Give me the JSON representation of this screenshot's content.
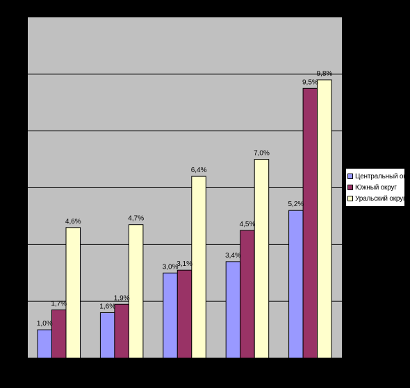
{
  "chart_data": {
    "type": "bar",
    "title": "",
    "xlabel": "",
    "ylabel": "",
    "categories": [
      "",
      "",
      "",
      "",
      ""
    ],
    "ylim": [
      0,
      12
    ],
    "grid": true,
    "legend_position": "right",
    "series": [
      {
        "name": "Центральный округ",
        "color": "#9999ff",
        "values": [
          1.0,
          1.6,
          3.0,
          3.4,
          5.2
        ],
        "labels": [
          "1,0%",
          "1,6%",
          "3,0%",
          "3,4%",
          "5,2%"
        ]
      },
      {
        "name": "Южный округ",
        "color": "#993366",
        "values": [
          1.7,
          1.9,
          3.1,
          4.5,
          9.5
        ],
        "labels": [
          "1,7%",
          "1,9%",
          "3,1%",
          "4,5%",
          "9,5%"
        ]
      },
      {
        "name": "Уральский округ",
        "color": "#ffffcc",
        "values": [
          4.6,
          4.7,
          6.4,
          7.0,
          9.8
        ],
        "labels": [
          "4,6%",
          "4,7%",
          "6,4%",
          "7,0%",
          "9,8%"
        ]
      }
    ]
  },
  "colors": {
    "background": "#000000",
    "plot_area": "#c0c0c0",
    "gridline": "#000000"
  }
}
